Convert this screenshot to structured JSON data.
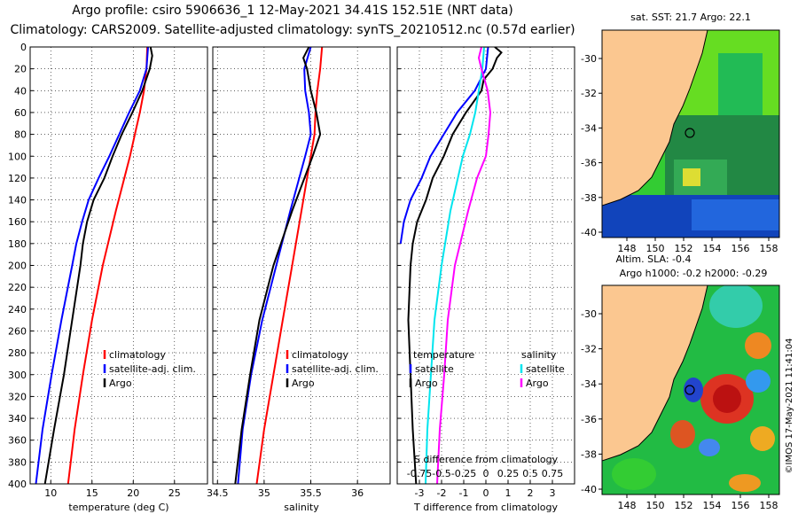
{
  "header": {
    "line1": "Argo profile: csiro 5906636_1 12-May-2021 34.41S 152.51E (NRT data)",
    "line2": "Climatology: CARS2009. Satellite-adjusted climatology: synTS_20210512.nc (0.57d earlier)"
  },
  "colors": {
    "climatology": "#ff0000",
    "satellite": "#0000ff",
    "argo": "#000000",
    "sal_sat": "#00e5ee",
    "sal_argo": "#ff00ff"
  },
  "chart_data": [
    {
      "type": "line",
      "name": "temperature-profile",
      "xlabel": "temperature (deg C)",
      "xlim": [
        7.5,
        29
      ],
      "xticks": [
        "10",
        "15",
        "20",
        "25"
      ],
      "xtick_values": [
        10,
        15,
        20,
        25
      ],
      "ylim": [
        0,
        400
      ],
      "yticks": [
        "0",
        "20",
        "40",
        "60",
        "80",
        "100",
        "120",
        "140",
        "160",
        "180",
        "200",
        "220",
        "240",
        "260",
        "280",
        "300",
        "320",
        "340",
        "360",
        "380",
        "400"
      ],
      "legend": [
        "climatology",
        "satellite-adj. clim.",
        "Argo"
      ],
      "series": [
        {
          "name": "climatology",
          "color": "#ff0000",
          "depth": [
            0,
            20,
            40,
            60,
            80,
            100,
            150,
            200,
            250,
            300,
            350,
            400
          ],
          "values": [
            21.7,
            21.6,
            21.3,
            20.8,
            20.2,
            19.6,
            17.9,
            16.3,
            15.0,
            13.9,
            12.9,
            12.1
          ]
        },
        {
          "name": "satellite-adj. clim.",
          "color": "#0000ff",
          "depth": [
            0,
            20,
            40,
            60,
            80,
            100,
            120,
            140,
            160,
            180,
            200,
            250,
            300,
            350,
            400
          ],
          "values": [
            21.8,
            21.6,
            20.8,
            19.5,
            18.3,
            17.1,
            15.8,
            14.6,
            13.8,
            13.1,
            12.6,
            11.3,
            10.1,
            9.0,
            8.2
          ]
        },
        {
          "name": "Argo",
          "color": "#000000",
          "depth": [
            0,
            8,
            20,
            40,
            60,
            80,
            100,
            120,
            140,
            160,
            180,
            200,
            250,
            300,
            350,
            400
          ],
          "values": [
            22.1,
            22.3,
            22.0,
            21.1,
            19.9,
            18.6,
            17.5,
            16.5,
            15.2,
            14.4,
            13.9,
            13.6,
            12.6,
            11.6,
            10.4,
            9.3
          ]
        }
      ]
    },
    {
      "type": "line",
      "name": "salinity-profile",
      "xlabel": "salinity",
      "xlim": [
        34.45,
        36.35
      ],
      "xticks": [
        "34.5",
        "35",
        "35.5",
        "36"
      ],
      "xtick_values": [
        34.5,
        35,
        35.5,
        36
      ],
      "ylim": [
        0,
        400
      ],
      "legend": [
        "climatology",
        "satellite-adj. clim.",
        "Argo"
      ],
      "series": [
        {
          "name": "climatology",
          "color": "#ff0000",
          "depth": [
            0,
            20,
            40,
            60,
            80,
            100,
            150,
            200,
            250,
            300,
            350,
            400
          ],
          "values": [
            35.62,
            35.6,
            35.57,
            35.55,
            35.54,
            35.5,
            35.4,
            35.3,
            35.2,
            35.1,
            35.0,
            34.92
          ]
        },
        {
          "name": "satellite-adj. clim.",
          "color": "#0000ff",
          "depth": [
            0,
            20,
            40,
            60,
            80,
            100,
            150,
            200,
            250,
            300,
            350,
            400
          ],
          "values": [
            35.5,
            35.43,
            35.44,
            35.48,
            35.5,
            35.44,
            35.28,
            35.13,
            34.98,
            34.86,
            34.77,
            34.72
          ]
        },
        {
          "name": "Argo",
          "color": "#000000",
          "depth": [
            0,
            10,
            20,
            40,
            60,
            80,
            100,
            150,
            200,
            250,
            300,
            350,
            400
          ],
          "values": [
            35.48,
            35.42,
            35.46,
            35.5,
            35.56,
            35.6,
            35.52,
            35.3,
            35.1,
            34.95,
            34.85,
            34.76,
            34.69
          ]
        }
      ]
    },
    {
      "type": "line",
      "name": "difference-profile",
      "xlabel": "T difference from climatology",
      "xlim": [
        -4,
        4
      ],
      "xticks": [
        "-3",
        "-2",
        "-1",
        "0",
        "1",
        "2",
        "3"
      ],
      "xtick_values": [
        -3,
        -2,
        -1,
        0,
        1,
        2,
        3
      ],
      "top_axis_label": "S difference from climatology",
      "top_ticks": [
        "-0.75",
        "-0.5",
        "-0.25",
        "0",
        "0.25",
        "0.5",
        "0.75"
      ],
      "top_tick_values": [
        -0.75,
        -0.5,
        -0.25,
        0,
        0.25,
        0.5,
        0.75
      ],
      "ylim": [
        0,
        400
      ],
      "legend_t_title": "temperature",
      "legend_s_title": "salinity",
      "legend_t": [
        "satellite",
        "Argo"
      ],
      "legend_s": [
        "satellite",
        "Argo"
      ],
      "series": [
        {
          "name": "T satellite",
          "color": "#0000ff",
          "depth": [
            0,
            20,
            40,
            60,
            80,
            100,
            120,
            140,
            160,
            180
          ],
          "values": [
            0.1,
            0.0,
            -0.5,
            -1.3,
            -1.9,
            -2.5,
            -2.9,
            -3.4,
            -3.7,
            -3.85
          ]
        },
        {
          "name": "T Argo",
          "color": "#000000",
          "depth": [
            0,
            5,
            10,
            20,
            30,
            40,
            60,
            80,
            100,
            120,
            140,
            160,
            180,
            200,
            250,
            300,
            350,
            400
          ],
          "values": [
            0.4,
            0.7,
            0.5,
            0.3,
            -0.1,
            -0.2,
            -0.9,
            -1.5,
            -1.9,
            -2.4,
            -2.7,
            -3.1,
            -3.3,
            -3.4,
            -3.5,
            -3.4,
            -3.3,
            -3.15
          ]
        },
        {
          "name": "S satellite",
          "color": "#00e5ee",
          "depth": [
            0,
            20,
            40,
            60,
            80,
            100,
            150,
            200,
            250,
            300,
            350,
            400
          ],
          "values": [
            -0.02,
            -0.04,
            -0.08,
            -0.12,
            -0.18,
            -0.26,
            -0.4,
            -0.5,
            -0.58,
            -0.62,
            -0.66,
            -0.68
          ]
        },
        {
          "name": "S Argo",
          "color": "#ff00ff",
          "depth": [
            0,
            10,
            20,
            40,
            60,
            80,
            100,
            120,
            150,
            200,
            250,
            300,
            350,
            400
          ],
          "values": [
            -0.05,
            -0.08,
            -0.05,
            0.02,
            0.05,
            0.03,
            0.0,
            -0.1,
            -0.2,
            -0.35,
            -0.43,
            -0.47,
            -0.52,
            -0.55
          ]
        }
      ]
    }
  ],
  "maps": {
    "top": {
      "title": "sat. SST: 21.7 Argo: 22.1",
      "lat_ticks": [
        "-30",
        "-32",
        "-34",
        "-36",
        "-38",
        "-40"
      ],
      "lon_ticks": [
        "148",
        "150",
        "152",
        "154",
        "156",
        "158"
      ]
    },
    "bottom": {
      "title1": "Altim. SLA: -0.4",
      "title2": "Argo h1000: -0.2 h2000: -0.29",
      "lat_ticks": [
        "-30",
        "-32",
        "-34",
        "-36",
        "-38",
        "-40"
      ],
      "lon_ticks": [
        "148",
        "150",
        "152",
        "154",
        "156",
        "158"
      ]
    },
    "watermark": "©IMOS 17-May-2021 11:41:04"
  }
}
